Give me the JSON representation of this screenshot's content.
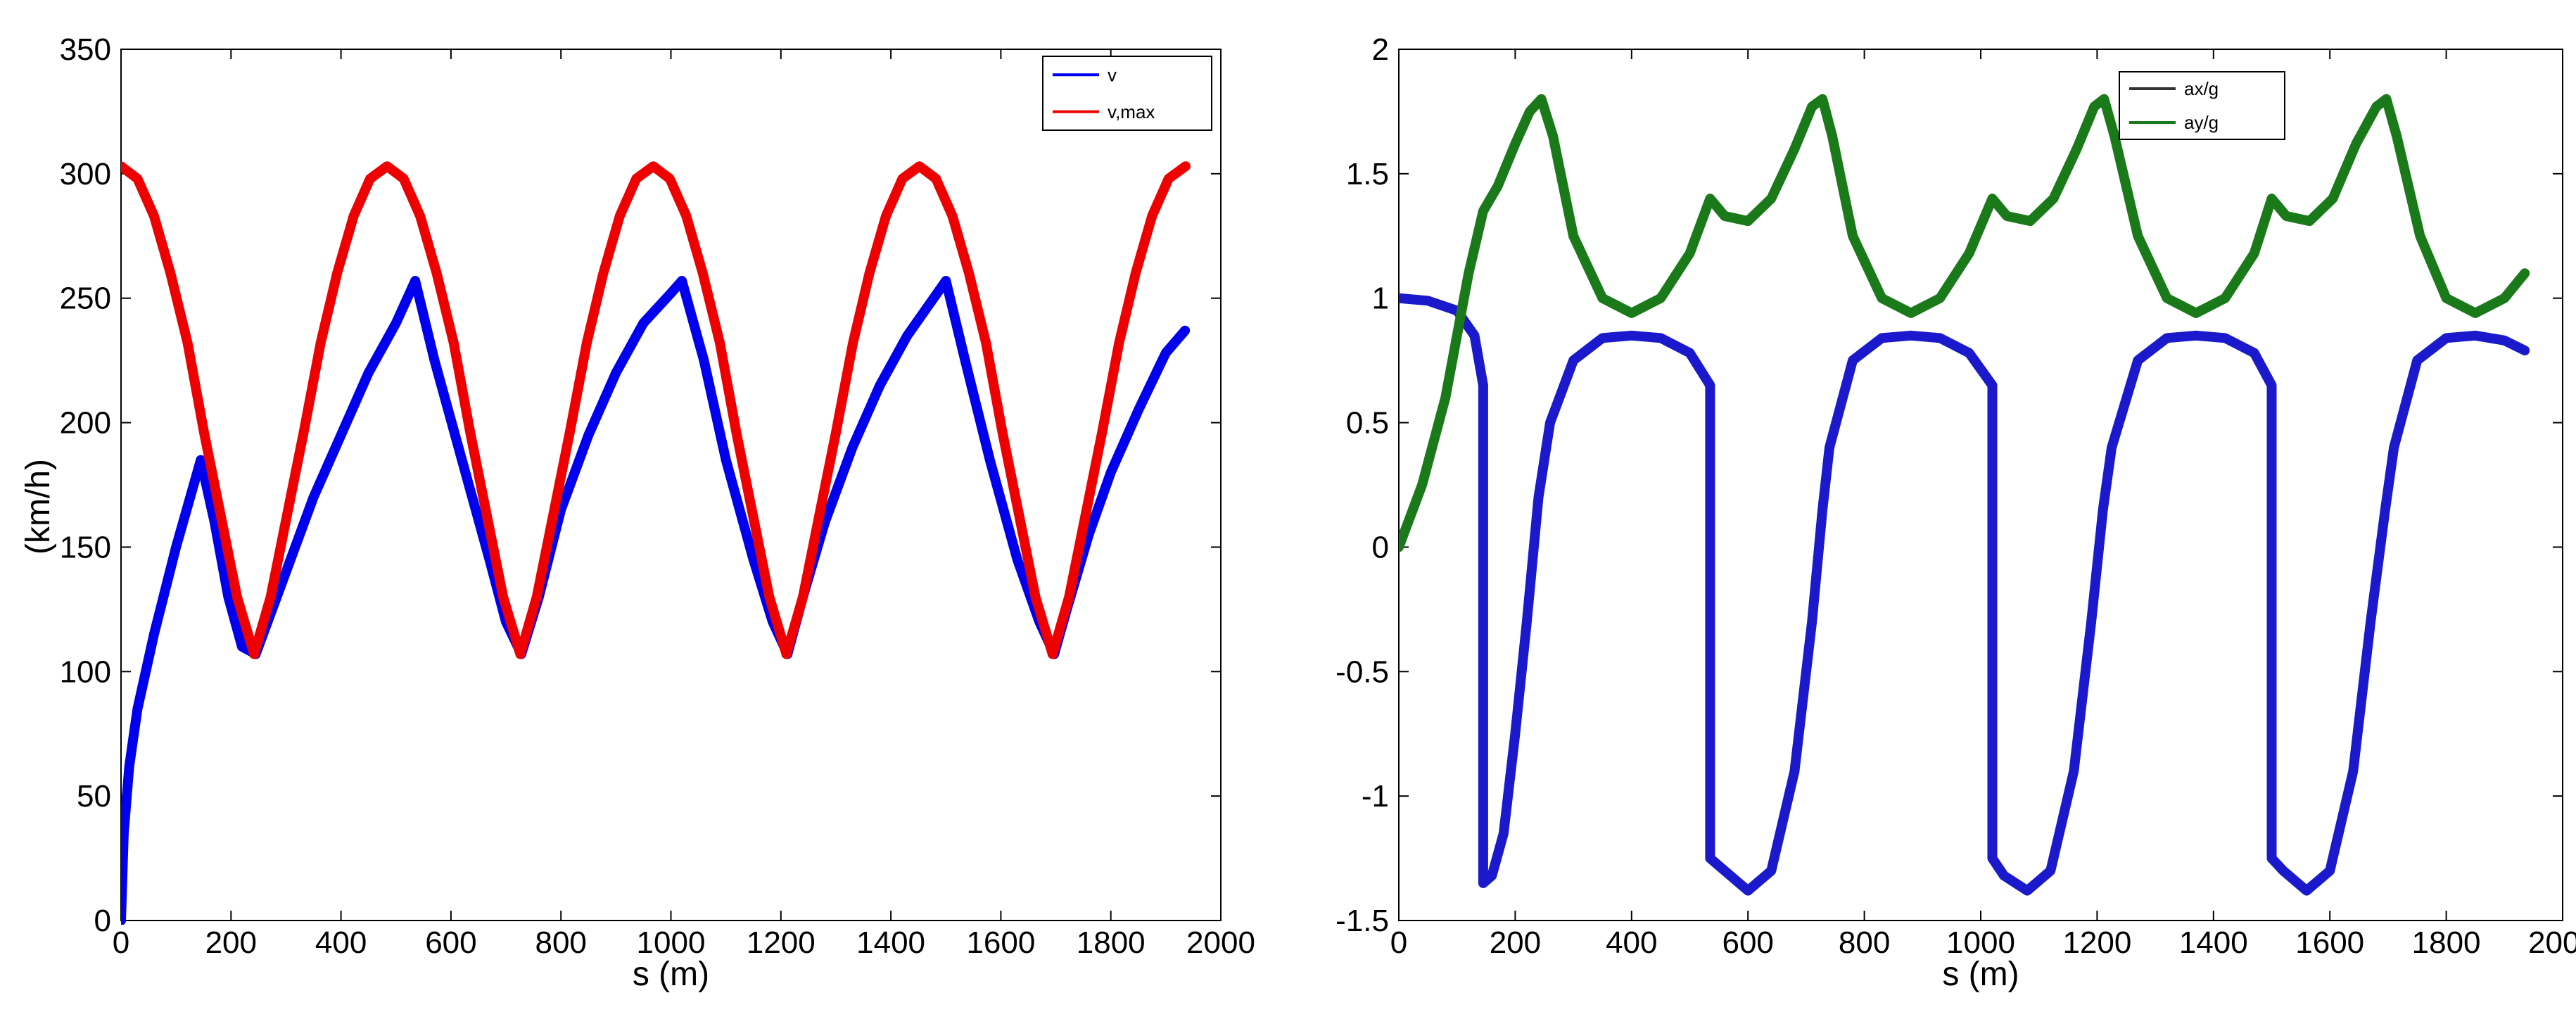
{
  "chart_data": [
    {
      "type": "line",
      "title": "",
      "xlabel": "s (m)",
      "ylabel": "(km/h)",
      "xlim": [
        0,
        2000
      ],
      "ylim": [
        0,
        350
      ],
      "xticks": [
        0,
        200,
        400,
        600,
        800,
        1000,
        1200,
        1400,
        1600,
        1800,
        2000
      ],
      "yticks": [
        0,
        50,
        100,
        150,
        200,
        250,
        300,
        350
      ],
      "legend_position": "top-right",
      "series": [
        {
          "name": "v",
          "color": "#0000ee",
          "x": [
            0,
            5,
            15,
            30,
            60,
            100,
            145,
            170,
            195,
            220,
            245,
            300,
            350,
            400,
            450,
            500,
            535,
            570,
            620,
            670,
            700,
            728,
            760,
            800,
            850,
            900,
            950,
            1000,
            1020,
            1060,
            1100,
            1150,
            1185,
            1212,
            1240,
            1280,
            1330,
            1380,
            1430,
            1500,
            1535,
            1580,
            1630,
            1670,
            1697,
            1720,
            1760,
            1800,
            1850,
            1900,
            1935
          ],
          "values": [
            0,
            35,
            62,
            85,
            115,
            150,
            185,
            160,
            130,
            110,
            107,
            140,
            170,
            195,
            220,
            240,
            257,
            225,
            185,
            145,
            120,
            107,
            130,
            165,
            195,
            220,
            240,
            252,
            257,
            225,
            185,
            145,
            120,
            107,
            130,
            160,
            190,
            215,
            235,
            257,
            225,
            185,
            145,
            120,
            107,
            125,
            155,
            180,
            205,
            228,
            237
          ]
        },
        {
          "name": "v,max",
          "color": "#ee0000",
          "x": [
            0,
            30,
            60,
            90,
            121,
            151,
            181,
            211,
            242,
            272,
            302,
            332,
            363,
            393,
            423,
            453,
            484,
            514,
            544,
            574,
            605,
            635,
            665,
            695,
            726,
            756,
            786,
            816,
            847,
            877,
            907,
            937,
            968,
            998,
            1028,
            1058,
            1089,
            1119,
            1149,
            1179,
            1210,
            1240,
            1270,
            1300,
            1331,
            1361,
            1391,
            1421,
            1452,
            1482,
            1512,
            1542,
            1573,
            1603,
            1633,
            1663,
            1694,
            1724,
            1754,
            1784,
            1815,
            1845,
            1875,
            1905,
            1936
          ],
          "values": [
            303,
            298,
            283,
            260,
            232,
            196,
            163,
            130,
            107,
            130,
            163,
            196,
            232,
            260,
            283,
            298,
            303,
            298,
            283,
            260,
            232,
            196,
            163,
            130,
            107,
            130,
            163,
            196,
            232,
            260,
            283,
            298,
            303,
            298,
            283,
            260,
            232,
            196,
            163,
            130,
            107,
            130,
            163,
            196,
            232,
            260,
            283,
            298,
            303,
            298,
            283,
            260,
            232,
            196,
            163,
            130,
            107,
            130,
            163,
            196,
            232,
            260,
            283,
            298,
            303
          ]
        }
      ]
    },
    {
      "type": "line",
      "title": "",
      "xlabel": "s (m)",
      "ylabel": "",
      "xlim": [
        0,
        2000
      ],
      "ylim": [
        -1.5,
        2
      ],
      "xticks": [
        0,
        200,
        400,
        600,
        800,
        1000,
        1200,
        1400,
        1600,
        1800,
        2000
      ],
      "yticks": [
        -1.5,
        -1,
        -0.5,
        0,
        0.5,
        1,
        1.5,
        2
      ],
      "ytick_labels": [
        "-1.5",
        "-1",
        "-0.5",
        "0",
        "0.5",
        "1",
        "1.5",
        "2"
      ],
      "legend_position": "top-right",
      "series": [
        {
          "name": "ax/g",
          "color": "#1a1acc",
          "legend_color": "#333333",
          "x": [
            0,
            50,
            100,
            130,
            145,
            145,
            160,
            180,
            200,
            220,
            240,
            260,
            300,
            350,
            400,
            450,
            500,
            535,
            535,
            560,
            600,
            640,
            680,
            710,
            728,
            740,
            780,
            830,
            880,
            930,
            980,
            1020,
            1020,
            1040,
            1080,
            1120,
            1160,
            1190,
            1210,
            1225,
            1270,
            1320,
            1370,
            1420,
            1470,
            1500,
            1500,
            1520,
            1560,
            1600,
            1640,
            1670,
            1695,
            1710,
            1750,
            1800,
            1850,
            1900,
            1935
          ],
          "values": [
            1.0,
            0.99,
            0.95,
            0.85,
            0.65,
            -1.35,
            -1.32,
            -1.15,
            -0.75,
            -0.3,
            0.2,
            0.5,
            0.75,
            0.84,
            0.85,
            0.84,
            0.78,
            0.65,
            -1.25,
            -1.3,
            -1.38,
            -1.3,
            -0.9,
            -0.3,
            0.15,
            0.4,
            0.75,
            0.84,
            0.85,
            0.84,
            0.78,
            0.65,
            -1.25,
            -1.32,
            -1.38,
            -1.3,
            -0.9,
            -0.3,
            0.15,
            0.4,
            0.75,
            0.84,
            0.85,
            0.84,
            0.78,
            0.65,
            -1.25,
            -1.3,
            -1.38,
            -1.3,
            -0.9,
            -0.3,
            0.15,
            0.4,
            0.75,
            0.84,
            0.85,
            0.83,
            0.79
          ]
        },
        {
          "name": "ay/g",
          "color": "#1a7a1a",
          "x": [
            0,
            40,
            80,
            120,
            145,
            170,
            200,
            225,
            245,
            265,
            300,
            350,
            400,
            450,
            500,
            535,
            560,
            600,
            640,
            680,
            710,
            728,
            745,
            780,
            830,
            880,
            930,
            980,
            1020,
            1045,
            1085,
            1125,
            1165,
            1195,
            1212,
            1230,
            1270,
            1320,
            1370,
            1420,
            1470,
            1500,
            1525,
            1565,
            1605,
            1645,
            1680,
            1697,
            1715,
            1755,
            1800,
            1850,
            1900,
            1935
          ],
          "values": [
            0.0,
            0.25,
            0.6,
            1.1,
            1.35,
            1.45,
            1.62,
            1.75,
            1.8,
            1.65,
            1.25,
            1.0,
            0.94,
            1.0,
            1.18,
            1.4,
            1.33,
            1.31,
            1.4,
            1.6,
            1.77,
            1.8,
            1.65,
            1.25,
            1.0,
            0.94,
            1.0,
            1.18,
            1.4,
            1.33,
            1.31,
            1.4,
            1.6,
            1.77,
            1.8,
            1.65,
            1.25,
            1.0,
            0.94,
            1.0,
            1.18,
            1.4,
            1.33,
            1.31,
            1.4,
            1.62,
            1.77,
            1.8,
            1.65,
            1.25,
            1.0,
            0.94,
            1.0,
            1.1
          ]
        }
      ]
    }
  ]
}
